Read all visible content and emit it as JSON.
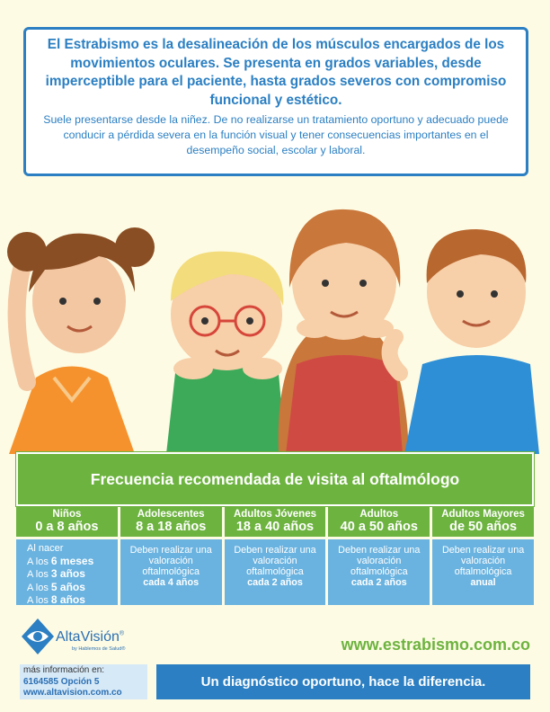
{
  "intro": {
    "lead": "El Estrabismo es la desalineación de los músculos encargados de los movimientos oculares. Se presenta en grados variables, desde imperceptible para el paciente, hasta grados severos con compromiso funcional y estético.",
    "body": "Suele presentarse desde la niñez. De no realizarse un tratamiento oportuno y adecuado puede conducir a pérdida severa en la función visual y tener consecuencias importantes en el desempeño social, escolar y laboral."
  },
  "schedule": {
    "title": "Frecuencia recomendada de visita al oftalmólogo",
    "groups": [
      {
        "name": "Niños",
        "range": "0 a 8 años"
      },
      {
        "name": "Adolescentes",
        "range": "8 a 18 años"
      },
      {
        "name": "Adultos Jóvenes",
        "range": "18 a 40 años"
      },
      {
        "name": "Adultos",
        "range": "40 a 50 años"
      },
      {
        "name": "Adultos Mayores",
        "range": "de 50 años"
      }
    ],
    "children_items": [
      {
        "pre": "Al nacer",
        "num": ""
      },
      {
        "pre": "A los ",
        "num": "6 meses"
      },
      {
        "pre": "A los ",
        "num": "3 años"
      },
      {
        "pre": "A los ",
        "num": "5 años"
      },
      {
        "pre": "A los ",
        "num": "8 años"
      }
    ],
    "rec_prefix": "Deben realizar una valoración oftalmológica",
    "frequencies": [
      "cada 4 años",
      "cada 2 años",
      "cada 2 años",
      "anual"
    ]
  },
  "footer": {
    "brand": "AltaVisión",
    "registered": "®",
    "tagline": "by Hablemos de Salud®",
    "info_label": "más información en:",
    "phone": "6164585 Opción 5",
    "brand_url": "www.altavision.com.co",
    "site_url": "www.estrabismo.com.co",
    "motto": "Un diagnóstico oportuno, hace la diferencia."
  },
  "colors": {
    "blue": "#2b7fc2",
    "green": "#6db33f",
    "light_blue": "#6ab3e0"
  }
}
